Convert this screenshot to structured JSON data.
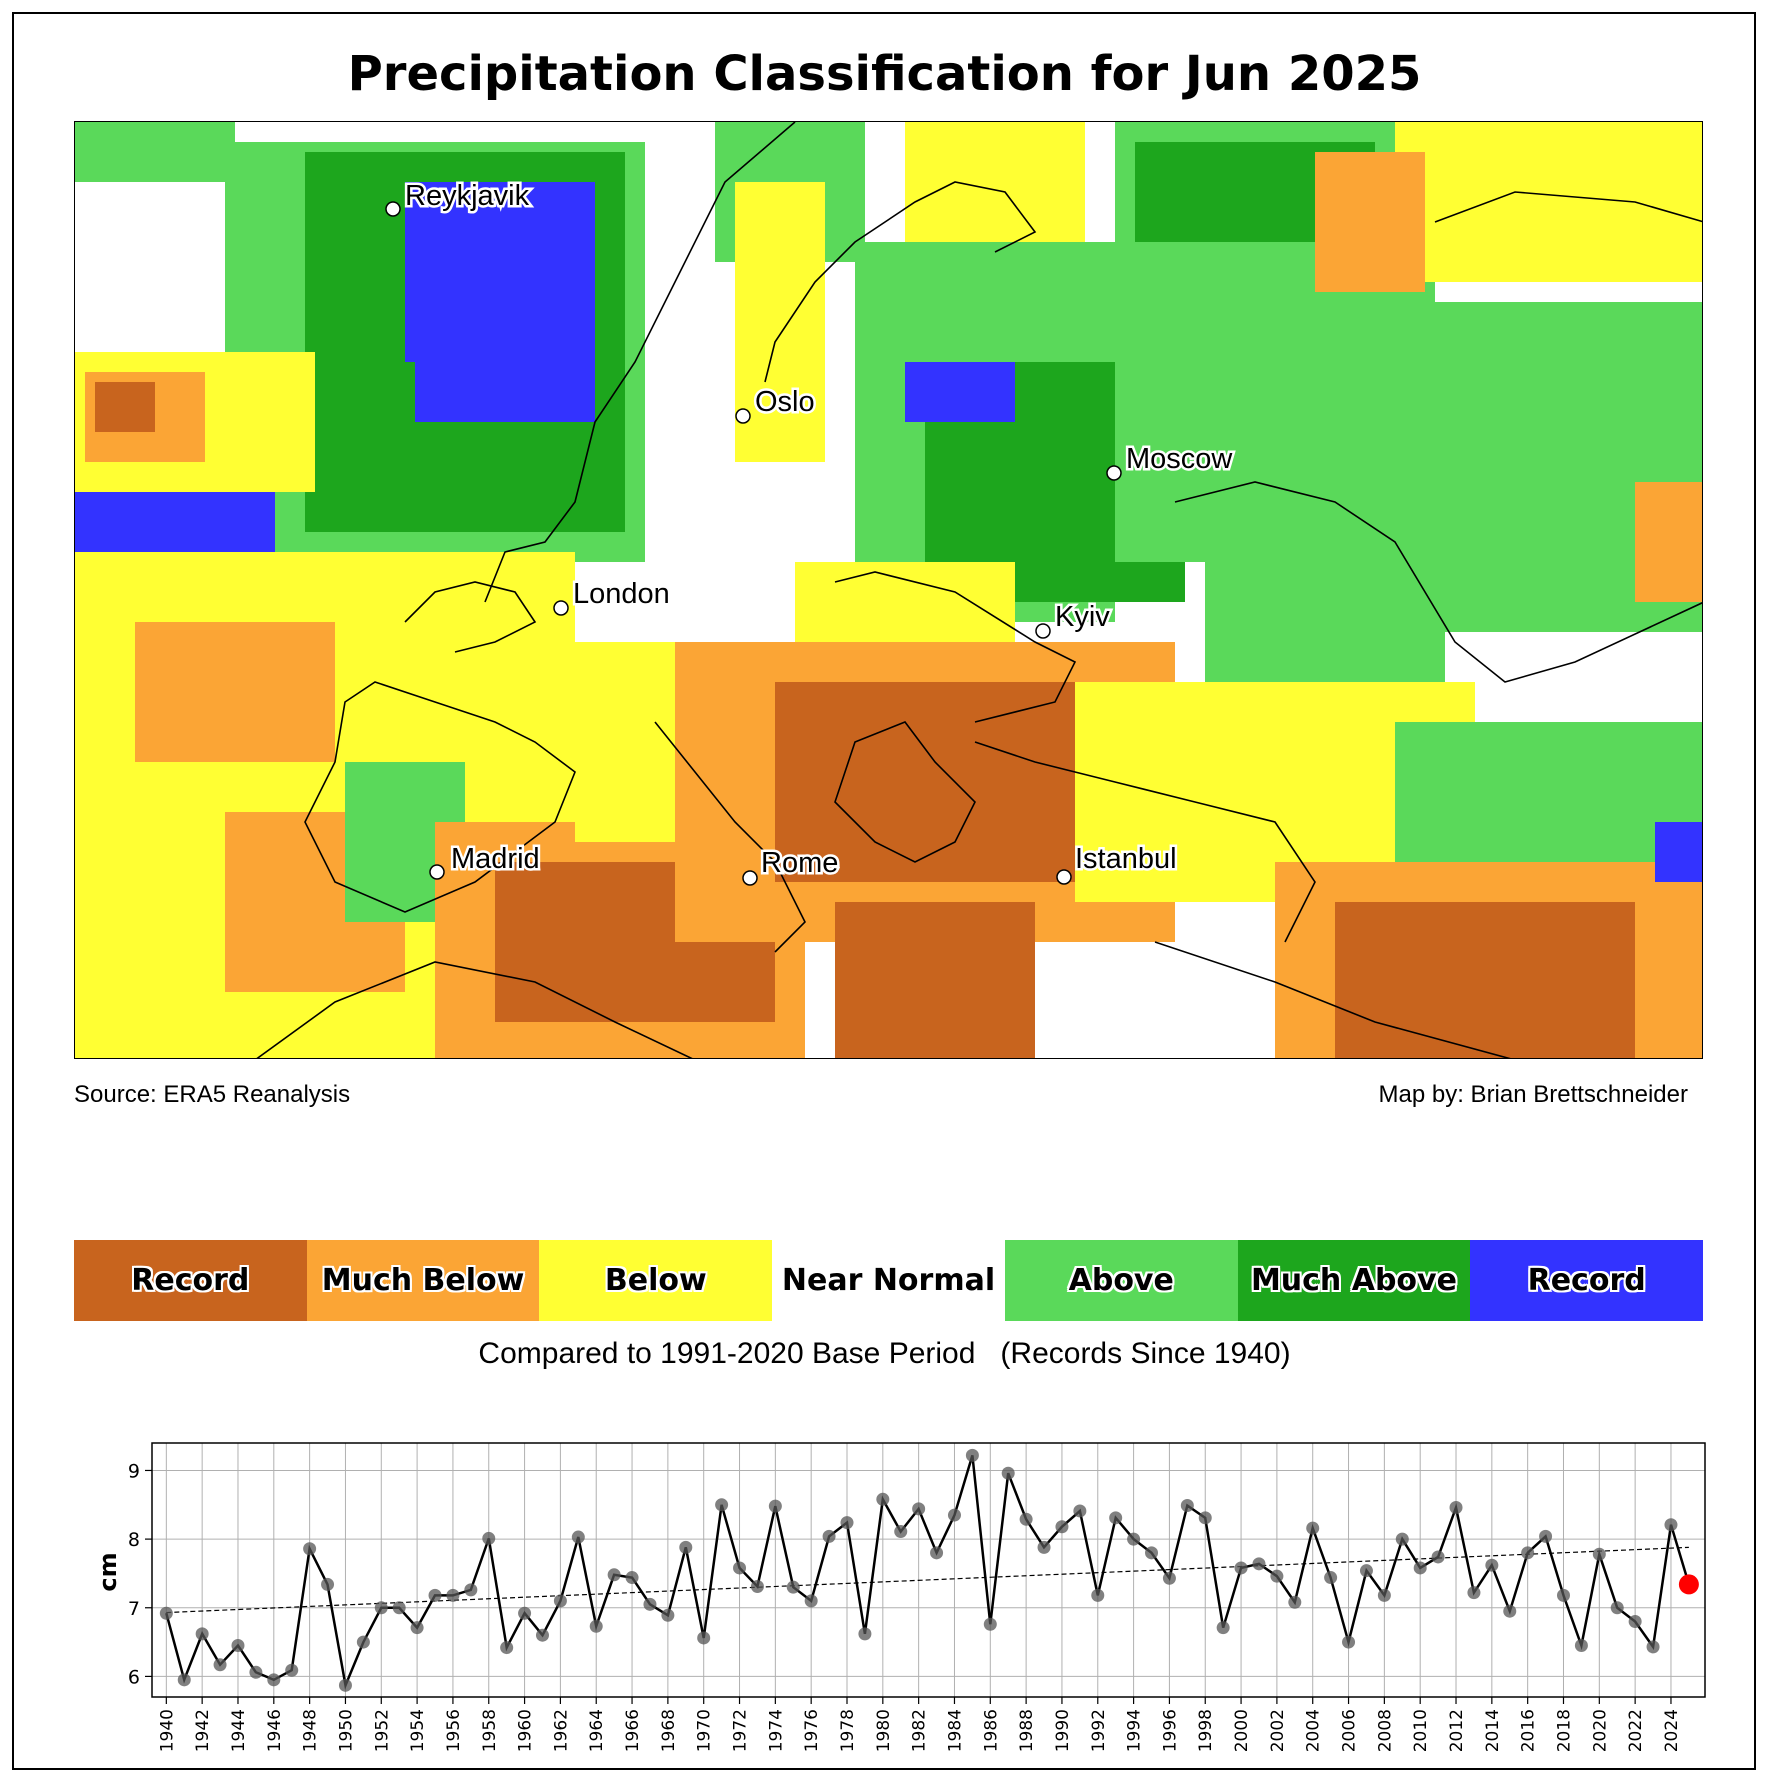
{
  "title": "Precipitation Classification for Jun 2025",
  "source": "Source: ERA5 Reanalysis",
  "credit": "Map by: Brian Brettschneider",
  "cities": [
    "Reykjavik",
    "Oslo",
    "Moscow",
    "London",
    "Kyiv",
    "Madrid",
    "Rome",
    "Istanbul"
  ],
  "legend": [
    {
      "label": "Record",
      "color": "#c8641e"
    },
    {
      "label": "Much Below",
      "color": "#fba535"
    },
    {
      "label": "Below",
      "color": "#ffff33"
    },
    {
      "label": "Near Normal",
      "color": "#ffffff"
    },
    {
      "label": "Above",
      "color": "#5ad95a"
    },
    {
      "label": "Much Above",
      "color": "#1da61d"
    },
    {
      "label": "Record",
      "color": "#3333ff"
    }
  ],
  "compare_text": "Compared to 1991-2020 Base Period   (Records Since 1940)",
  "chart_data": {
    "type": "line",
    "title": "",
    "xlabel": "",
    "ylabel": "cm",
    "ylim": [
      5.7,
      9.4
    ],
    "xlim": [
      1939.2,
      2025.9
    ],
    "yticks": [
      6,
      7,
      8,
      9
    ],
    "grid": true,
    "x": [
      1940,
      1941,
      1942,
      1943,
      1944,
      1945,
      1946,
      1947,
      1948,
      1949,
      1950,
      1951,
      1952,
      1953,
      1954,
      1955,
      1956,
      1957,
      1958,
      1959,
      1960,
      1961,
      1962,
      1963,
      1964,
      1965,
      1966,
      1967,
      1968,
      1969,
      1970,
      1971,
      1972,
      1973,
      1974,
      1975,
      1976,
      1977,
      1978,
      1979,
      1980,
      1981,
      1982,
      1983,
      1984,
      1985,
      1986,
      1987,
      1988,
      1989,
      1990,
      1991,
      1992,
      1993,
      1994,
      1995,
      1996,
      1997,
      1998,
      1999,
      2000,
      2001,
      2002,
      2003,
      2004,
      2005,
      2006,
      2007,
      2008,
      2009,
      2010,
      2011,
      2012,
      2013,
      2014,
      2015,
      2016,
      2017,
      2018,
      2019,
      2020,
      2021,
      2022,
      2023,
      2024,
      2025
    ],
    "values": [
      6.92,
      5.95,
      6.62,
      6.17,
      6.45,
      6.06,
      5.95,
      6.09,
      7.86,
      7.34,
      5.87,
      6.5,
      7.0,
      7.0,
      6.71,
      7.18,
      7.18,
      7.26,
      8.01,
      6.42,
      6.92,
      6.6,
      7.1,
      8.03,
      6.73,
      7.48,
      7.44,
      7.05,
      6.89,
      7.88,
      6.56,
      8.5,
      7.58,
      7.31,
      8.48,
      7.3,
      7.1,
      8.04,
      8.24,
      6.62,
      8.58,
      8.11,
      8.44,
      7.8,
      8.35,
      9.22,
      6.76,
      8.96,
      8.29,
      7.88,
      8.18,
      8.41,
      7.18,
      8.31,
      8.0,
      7.8,
      7.43,
      8.49,
      8.31,
      6.71,
      7.58,
      7.64,
      7.46,
      7.08,
      8.16,
      7.44,
      6.5,
      7.54,
      7.18,
      8.0,
      7.58,
      7.74,
      8.46,
      7.22,
      7.62,
      6.95,
      7.8,
      8.04,
      7.18,
      6.45,
      7.78,
      7.0,
      6.8,
      6.43,
      8.21,
      7.34
    ],
    "highlight": {
      "year": 2025,
      "value": 7.34,
      "color": "#ff0000"
    },
    "trend": {
      "start": [
        1940,
        6.93
      ],
      "end": [
        2025,
        7.88
      ]
    },
    "xtick_labels": [
      "1940",
      "1942",
      "1944",
      "1946",
      "1948",
      "1950",
      "1952",
      "1954",
      "1956",
      "1958",
      "1960",
      "1962",
      "1964",
      "1966",
      "1968",
      "1970",
      "1972",
      "1974",
      "1976",
      "1978",
      "1980",
      "1982",
      "1984",
      "1986",
      "1988",
      "1990",
      "1992",
      "1994",
      "1996",
      "1998",
      "2000",
      "2002",
      "2004",
      "2006",
      "2008",
      "2010",
      "2012",
      "2014",
      "2016",
      "2018",
      "2020",
      "2022",
      "2024"
    ]
  }
}
